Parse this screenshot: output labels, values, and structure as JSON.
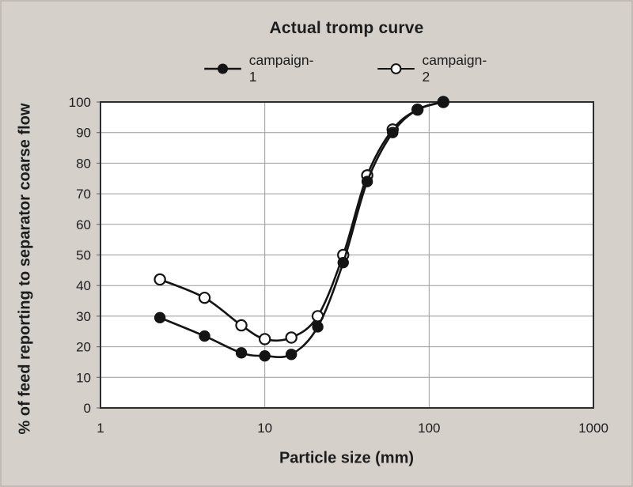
{
  "page": {
    "background_color": "#d6d0ca",
    "text_color": "#1d1d1d"
  },
  "chart_data": {
    "type": "line",
    "title": "Actual tromp curve",
    "xlabel": "Particle size (mm)",
    "ylabel": "% of feed reporting to separator coarse flow",
    "x_scale": "log",
    "xlim": [
      1,
      1000
    ],
    "ylim": [
      0,
      100
    ],
    "x_ticks": [
      1,
      10,
      100,
      1000
    ],
    "y_ticks": [
      0,
      10,
      20,
      30,
      40,
      50,
      60,
      70,
      80,
      90,
      100
    ],
    "x_gridlines": [
      10,
      100
    ],
    "grid": {
      "shown": true,
      "color": "#9b9b9b"
    },
    "plot_bg": "#ffffff",
    "border_color": "#2d2d2d",
    "line_color": "#141414",
    "legend": {
      "position": "top",
      "entries": [
        "campaign-1",
        "campaign-2"
      ]
    },
    "series": [
      {
        "name": "campaign-2",
        "marker": "open-circle",
        "x": [
          2.3,
          4.3,
          7.2,
          10,
          14.5,
          21,
          30,
          42,
          60,
          85,
          122
        ],
        "values": [
          42,
          36,
          27,
          22.5,
          23,
          30,
          50,
          76,
          91,
          97.5,
          100
        ]
      },
      {
        "name": "campaign-1",
        "marker": "filled-circle",
        "x": [
          2.3,
          4.3,
          7.2,
          10,
          14.5,
          21,
          30,
          42,
          60,
          85,
          122
        ],
        "values": [
          29.5,
          23.5,
          18,
          17,
          17.5,
          26.5,
          47.5,
          74,
          90,
          97.5,
          100
        ]
      }
    ]
  }
}
